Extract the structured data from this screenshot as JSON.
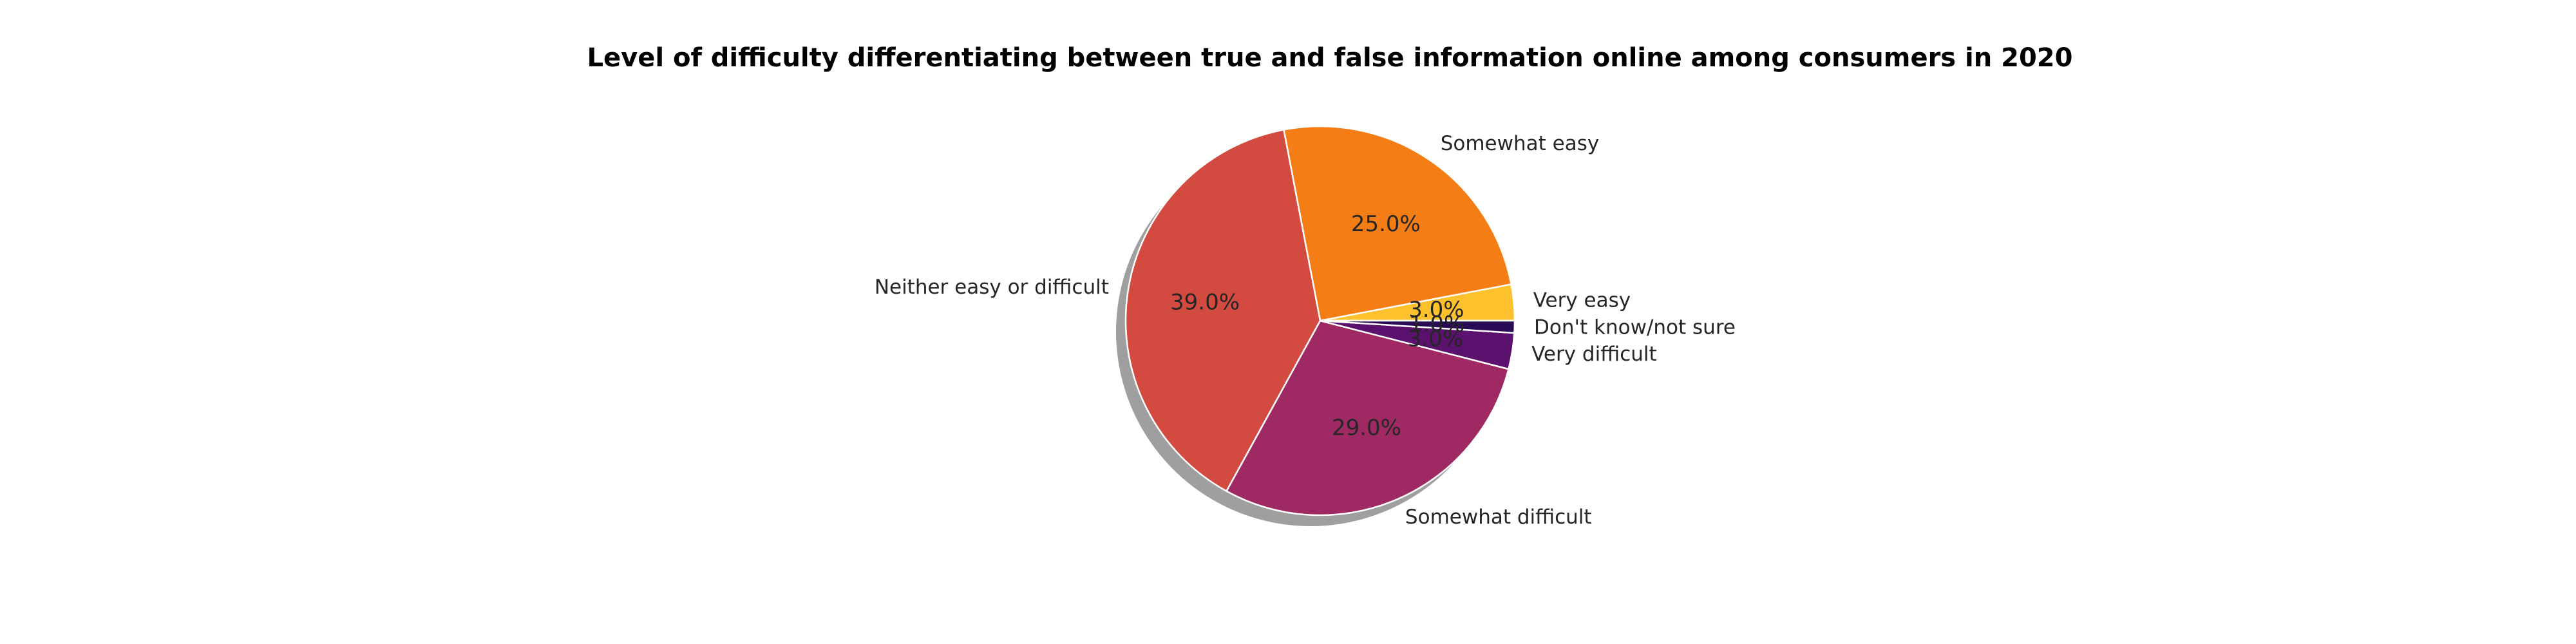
{
  "chart_data": {
    "type": "pie",
    "title": "Level of difficulty differentiating between true and false information online among consumers in 2020",
    "slices": [
      {
        "label": "Very easy",
        "value": 3.0,
        "pct_label": "3.0%",
        "color": "#fcc12c"
      },
      {
        "label": "Somewhat easy",
        "value": 25.0,
        "pct_label": "25.0%",
        "color": "#f57d15"
      },
      {
        "label": "Neither easy or difficult",
        "value": 39.0,
        "pct_label": "39.0%",
        "color": "#d34a41"
      },
      {
        "label": "Somewhat difficult",
        "value": 29.0,
        "pct_label": "29.0%",
        "color": "#9f2a63"
      },
      {
        "label": "Very difficult",
        "value": 3.0,
        "pct_label": "3.0%",
        "color": "#5b116e"
      },
      {
        "label": "Don't know/not sure",
        "value": 1.0,
        "pct_label": "1.0%",
        "color": "#280b54"
      }
    ],
    "start_angle_deg": 0,
    "direction": "counterclockwise",
    "shadow": true,
    "edge_color": "#ffffff",
    "legend": "none"
  }
}
